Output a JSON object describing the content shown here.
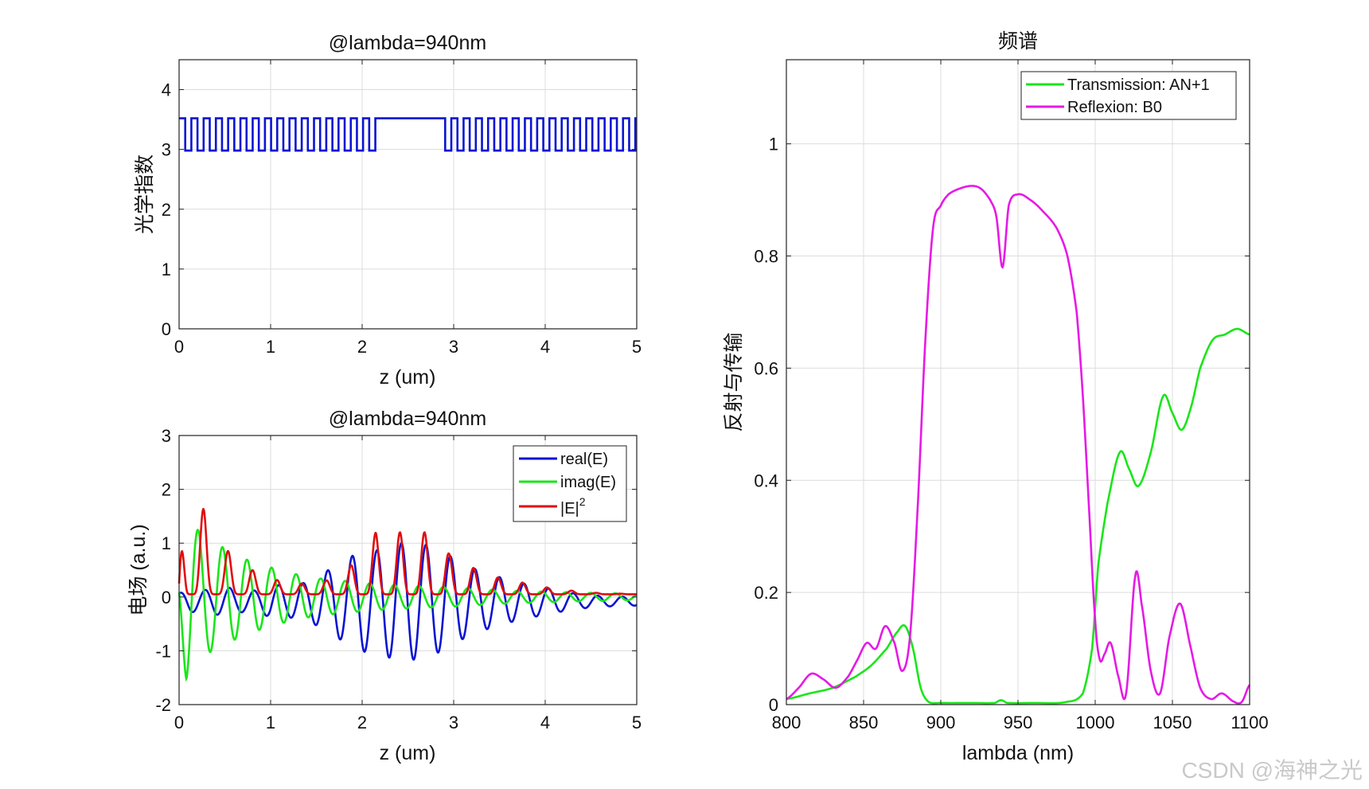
{
  "watermark": "CSDN @海神之光",
  "colors": {
    "blue": "#0a14d2",
    "green": "#19e619",
    "red": "#e00d0d",
    "magenta": "#e619e6"
  },
  "chart_data": [
    {
      "id": "index",
      "type": "line",
      "title": "@lambda=940nm",
      "xlabel": "z (um)",
      "ylabel": "光学指数",
      "xlim": [
        0,
        5
      ],
      "ylim": [
        0,
        4.5
      ],
      "xticks": [
        0,
        1,
        2,
        3,
        4,
        5
      ],
      "yticks": [
        0,
        1,
        2,
        3,
        4
      ],
      "xtick_labels": [
        "0",
        "1",
        "2",
        "3",
        "4",
        "5"
      ],
      "ytick_labels": [
        "0",
        "1",
        "2",
        "3",
        "4"
      ],
      "grid": true,
      "series": [
        {
          "name": "refractive index",
          "color": "#0a14d2",
          "step": true,
          "low": 2.98,
          "high": 3.52,
          "period_um": 0.134,
          "segments": [
            {
              "from": 0.0,
              "to": 2.2,
              "mode": "alternating"
            },
            {
              "from": 2.2,
              "to": 2.84,
              "mode": "high"
            },
            {
              "from": 2.84,
              "to": 5.0,
              "mode": "alternating"
            }
          ]
        }
      ]
    },
    {
      "id": "field",
      "type": "line",
      "title": "@lambda=940nm",
      "xlabel": "z (um)",
      "ylabel": "电场 (a.u.)",
      "xlim": [
        0,
        5
      ],
      "ylim": [
        -2,
        3
      ],
      "xticks": [
        0,
        1,
        2,
        3,
        4,
        5
      ],
      "yticks": [
        -2,
        -1,
        0,
        1,
        2,
        3
      ],
      "xtick_labels": [
        "0",
        "1",
        "2",
        "3",
        "4",
        "5"
      ],
      "ytick_labels": [
        "-2",
        "-1",
        "0",
        "1",
        "2",
        "3"
      ],
      "grid": true,
      "legend": {
        "position": "top-right",
        "entries": [
          {
            "label": "real(E)",
            "color": "#0a14d2"
          },
          {
            "label": "imag(E)",
            "color": "#19e619"
          },
          {
            "label": "|E|",
            "sup": "2",
            "color": "#e00d0d"
          }
        ]
      },
      "series": [
        {
          "name": "real(E)",
          "color": "#0a14d2",
          "x": [
            0,
            0.1,
            0.25,
            0.4,
            0.55,
            0.7,
            0.85,
            1.0,
            1.2,
            1.4,
            1.6,
            1.8,
            2.0,
            2.1,
            2.3,
            2.5,
            2.7,
            2.9,
            3.1,
            3.3,
            3.5,
            3.7,
            4.0,
            4.3,
            4.6,
            5.0
          ],
          "y": [
            0.15,
            0.2,
            0.2,
            0.25,
            0.25,
            0.2,
            0.2,
            0.3,
            0.3,
            0.35,
            0.55,
            0.75,
            0.95,
            0.9,
            1.05,
            1.1,
            1.05,
            0.9,
            0.7,
            0.55,
            0.45,
            0.35,
            0.25,
            0.15,
            0.1,
            0.08
          ],
          "cycles_per_um": 3.73,
          "phase": 1.2,
          "offset": -0.08
        },
        {
          "name": "imag(E)",
          "color": "#19e619",
          "x": [
            0,
            0.08,
            0.18,
            0.3,
            0.45,
            0.6,
            0.8,
            1.0,
            1.2,
            1.5,
            1.8,
            2.1,
            2.4,
            2.7,
            3.0,
            3.3,
            3.6,
            4.0,
            4.4,
            5.0
          ],
          "y": [
            0.6,
            1.55,
            1.3,
            1.05,
            0.95,
            0.8,
            0.65,
            0.55,
            0.45,
            0.35,
            0.3,
            0.25,
            0.22,
            0.2,
            0.18,
            0.15,
            0.12,
            0.1,
            0.08,
            0.06
          ],
          "cycles_per_um": 3.73,
          "phase": 3.0,
          "offset": 0.0
        },
        {
          "name": "|E|^2",
          "color": "#e00d0d",
          "x": [
            0,
            0.07,
            0.22,
            0.36,
            0.5,
            0.65,
            0.8,
            1.0,
            1.2,
            1.4,
            1.6,
            1.8,
            2.0,
            2.15,
            2.3,
            2.5,
            2.7,
            2.8,
            2.95,
            3.2,
            3.5,
            3.8,
            4.1,
            4.5,
            5.0
          ],
          "y": [
            0.25,
            2.5,
            1.8,
            1.3,
            0.9,
            0.7,
            0.5,
            0.35,
            0.25,
            0.25,
            0.3,
            0.45,
            0.8,
            1.2,
            1.2,
            1.2,
            1.2,
            1.2,
            0.8,
            0.55,
            0.35,
            0.25,
            0.15,
            0.08,
            0.05
          ],
          "cycles_per_um": 7.46,
          "phase": 0.0,
          "squared": true
        }
      ]
    },
    {
      "id": "spectrum",
      "type": "line",
      "title": "频谱",
      "xlabel": "lambda (nm)",
      "ylabel": "反射与传输",
      "xlim": [
        800,
        1100
      ],
      "ylim": [
        0,
        1.15
      ],
      "xticks": [
        800,
        850,
        900,
        950,
        1000,
        1050,
        1100
      ],
      "yticks": [
        0,
        0.2,
        0.4,
        0.6,
        0.8,
        1
      ],
      "xtick_labels": [
        "800",
        "850",
        "900",
        "950",
        "1000",
        "1050",
        "1100"
      ],
      "ytick_labels": [
        "0",
        "0.2",
        "0.4",
        "0.6",
        "0.8",
        "1"
      ],
      "grid": true,
      "legend": {
        "position": "top-right",
        "entries": [
          {
            "label": "Transmission: AN+1",
            "color": "#19e619"
          },
          {
            "label": "Reflexion: B0",
            "color": "#e619e6"
          }
        ]
      },
      "series": [
        {
          "name": "Transmission: AN+1",
          "color": "#19e619",
          "x": [
            800,
            815,
            830,
            845,
            855,
            865,
            872,
            877,
            882,
            887,
            892,
            900,
            920,
            935,
            939,
            943,
            960,
            980,
            992,
            998,
            1002,
            1008,
            1016,
            1022,
            1028,
            1036,
            1044,
            1050,
            1056,
            1062,
            1068,
            1076,
            1084,
            1092,
            1100
          ],
          "y": [
            0.01,
            0.02,
            0.03,
            0.05,
            0.07,
            0.1,
            0.13,
            0.14,
            0.1,
            0.03,
            0.005,
            0.003,
            0.003,
            0.003,
            0.008,
            0.003,
            0.003,
            0.004,
            0.02,
            0.1,
            0.25,
            0.36,
            0.45,
            0.42,
            0.39,
            0.45,
            0.55,
            0.52,
            0.49,
            0.53,
            0.6,
            0.65,
            0.66,
            0.67,
            0.66
          ]
        },
        {
          "name": "Reflexion: B0",
          "color": "#e619e6",
          "x": [
            800,
            808,
            816,
            824,
            832,
            840,
            846,
            852,
            858,
            864,
            870,
            875,
            880,
            885,
            890,
            895,
            900,
            905,
            912,
            920,
            926,
            932,
            936,
            940,
            944,
            950,
            958,
            966,
            975,
            982,
            988,
            992,
            996,
            1000,
            1003,
            1006,
            1010,
            1015,
            1020,
            1026,
            1030,
            1036,
            1042,
            1048,
            1055,
            1062,
            1068,
            1075,
            1082,
            1090,
            1095,
            1100
          ],
          "y": [
            0.01,
            0.03,
            0.055,
            0.045,
            0.03,
            0.05,
            0.08,
            0.11,
            0.1,
            0.14,
            0.11,
            0.06,
            0.12,
            0.35,
            0.65,
            0.85,
            0.89,
            0.91,
            0.92,
            0.925,
            0.92,
            0.9,
            0.87,
            0.78,
            0.89,
            0.91,
            0.9,
            0.88,
            0.85,
            0.8,
            0.7,
            0.55,
            0.35,
            0.15,
            0.08,
            0.09,
            0.11,
            0.05,
            0.02,
            0.23,
            0.18,
            0.06,
            0.02,
            0.12,
            0.18,
            0.1,
            0.03,
            0.01,
            0.02,
            0.005,
            0.005,
            0.035
          ]
        }
      ]
    }
  ]
}
